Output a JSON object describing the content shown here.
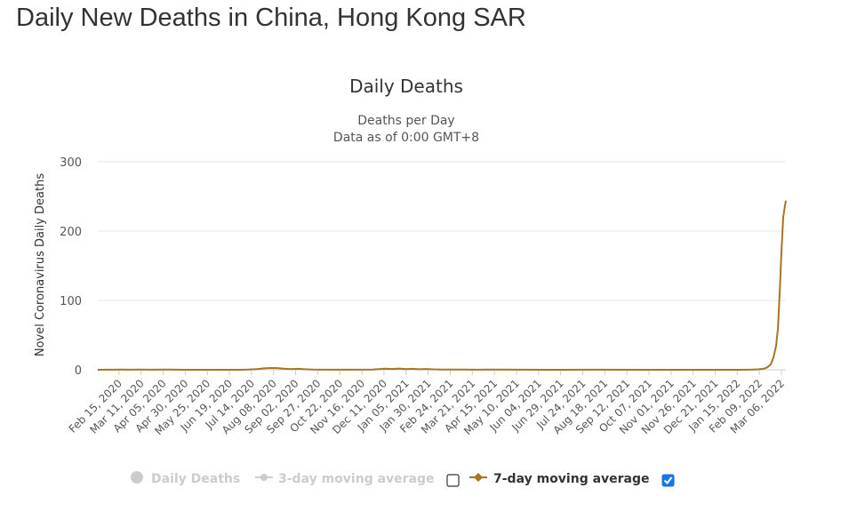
{
  "page": {
    "title": "Daily New Deaths in China, Hong Kong SAR"
  },
  "chart_data": {
    "type": "line",
    "title": "Daily Deaths",
    "subtitle_lines": [
      "Deaths per Day",
      "Data as of 0:00 GMT+8"
    ],
    "ylabel": "Novel Coronavirus Daily Deaths",
    "ylim": [
      0,
      300
    ],
    "yticks": [
      0,
      100,
      200,
      300
    ],
    "grid": true,
    "x_start": "2020-01-22",
    "x_end": "2022-03-11",
    "xtick_labels": [
      "Feb 15, 2020",
      "Mar 11, 2020",
      "Apr 05, 2020",
      "Apr 30, 2020",
      "May 25, 2020",
      "Jun 19, 2020",
      "Jul 14, 2020",
      "Aug 08, 2020",
      "Sep 02, 2020",
      "Sep 27, 2020",
      "Oct 22, 2020",
      "Nov 16, 2020",
      "Dec 11, 2020",
      "Jan 05, 2021",
      "Jan 30, 2021",
      "Feb 24, 2021",
      "Mar 21, 2021",
      "Apr 15, 2021",
      "May 10, 2021",
      "Jun 04, 2021",
      "Jun 29, 2021",
      "Jul 24, 2021",
      "Aug 18, 2021",
      "Sep 12, 2021",
      "Oct 07, 2021",
      "Nov 01, 2021",
      "Nov 26, 2021",
      "Dec 21, 2021",
      "Jan 15, 2022",
      "Feb 09, 2022",
      "Mar 06, 2022"
    ],
    "series": [
      {
        "name": "7-day moving average",
        "color": "#a8751f",
        "visible": true,
        "points": [
          [
            "2020-01-22",
            0
          ],
          [
            "2020-02-04",
            0.1
          ],
          [
            "2020-02-15",
            0.3
          ],
          [
            "2020-02-25",
            0.1
          ],
          [
            "2020-03-11",
            0.3
          ],
          [
            "2020-03-20",
            0.1
          ],
          [
            "2020-04-10",
            0.2
          ],
          [
            "2020-05-01",
            0
          ],
          [
            "2020-06-01",
            0
          ],
          [
            "2020-07-01",
            0
          ],
          [
            "2020-07-10",
            0.3
          ],
          [
            "2020-07-20",
            1.0
          ],
          [
            "2020-07-28",
            2.0
          ],
          [
            "2020-08-05",
            2.6
          ],
          [
            "2020-08-12",
            2.4
          ],
          [
            "2020-08-20",
            1.6
          ],
          [
            "2020-08-28",
            1.0
          ],
          [
            "2020-09-05",
            1.4
          ],
          [
            "2020-09-12",
            0.8
          ],
          [
            "2020-09-22",
            0.2
          ],
          [
            "2020-10-10",
            0.1
          ],
          [
            "2020-11-10",
            0.1
          ],
          [
            "2020-11-28",
            0.4
          ],
          [
            "2020-12-05",
            1.0
          ],
          [
            "2020-12-12",
            1.6
          ],
          [
            "2020-12-20",
            1.2
          ],
          [
            "2020-12-28",
            1.8
          ],
          [
            "2021-01-05",
            1.0
          ],
          [
            "2021-01-12",
            1.4
          ],
          [
            "2021-01-20",
            0.8
          ],
          [
            "2021-01-28",
            1.2
          ],
          [
            "2021-02-05",
            0.6
          ],
          [
            "2021-02-15",
            0.4
          ],
          [
            "2021-02-25",
            0.2
          ],
          [
            "2021-03-10",
            0.4
          ],
          [
            "2021-03-25",
            0.1
          ],
          [
            "2021-04-15",
            0.3
          ],
          [
            "2021-05-10",
            0.1
          ],
          [
            "2021-06-15",
            0
          ],
          [
            "2021-08-01",
            0.1
          ],
          [
            "2021-10-01",
            0
          ],
          [
            "2021-12-01",
            0
          ],
          [
            "2022-01-20",
            0
          ],
          [
            "2022-02-01",
            0.2
          ],
          [
            "2022-02-08",
            0.6
          ],
          [
            "2022-02-14",
            1.6
          ],
          [
            "2022-02-18",
            3.5
          ],
          [
            "2022-02-22",
            8
          ],
          [
            "2022-02-25",
            18
          ],
          [
            "2022-02-28",
            35
          ],
          [
            "2022-03-02",
            60
          ],
          [
            "2022-03-04",
            110
          ],
          [
            "2022-03-06",
            170
          ],
          [
            "2022-03-08",
            220
          ],
          [
            "2022-03-10",
            237
          ],
          [
            "2022-03-11",
            244
          ]
        ]
      }
    ]
  },
  "legend": {
    "daily": "Daily Deaths",
    "avg3": "3-day moving average",
    "avg7": "7-day moving average",
    "avg7_checked": true,
    "avg3_checked": false
  }
}
